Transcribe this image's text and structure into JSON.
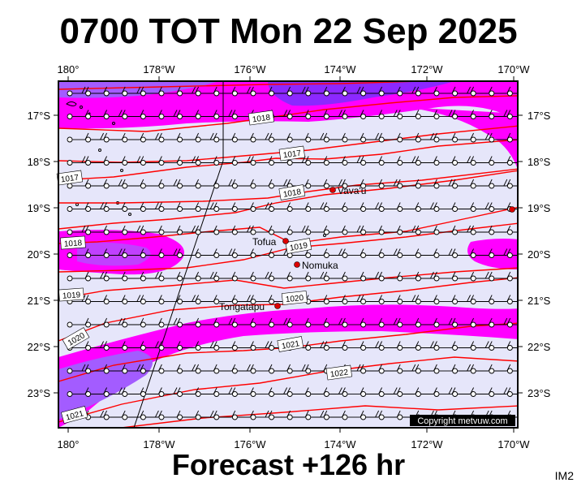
{
  "title": "0700 TOT Mon 22 Sep 2025",
  "footer": "Forecast +126 hr",
  "corner_label": "IM2",
  "copyright": "Copyright metvuw.com",
  "map": {
    "lon_labels": [
      "180°",
      "178°W",
      "176°W",
      "174°W",
      "172°W",
      "170°W"
    ],
    "lat_labels": [
      "17°S",
      "18°S",
      "19°S",
      "20°S",
      "21°S",
      "22°S",
      "23°S"
    ],
    "places": [
      {
        "name": "Vava'u"
      },
      {
        "name": "Tofua"
      },
      {
        "name": "Nomuka"
      },
      {
        "name": "Tongatapu"
      }
    ],
    "isobars": [
      "1018",
      "1017",
      "1017",
      "1018",
      "1018",
      "1019",
      "1019",
      "1020",
      "1020",
      "1021",
      "1022",
      "1021"
    ],
    "colors": {
      "background": "#e6e6fa",
      "precip_light": "#ff00ff",
      "precip_heavy": "#8c28ff",
      "isobar": "#ff0000",
      "town": "#dd0000"
    }
  }
}
